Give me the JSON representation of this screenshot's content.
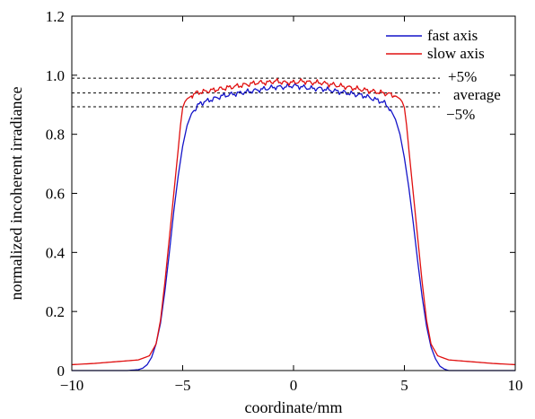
{
  "chart_data": {
    "type": "line",
    "title": "",
    "xlabel": "coordinate/mm",
    "ylabel": "normalized incoherent irradiance",
    "xlim": [
      -10,
      10
    ],
    "ylim": [
      0,
      1.2
    ],
    "xticks": [
      -10,
      -5,
      0,
      5,
      10
    ],
    "yticks": [
      0,
      0.2,
      0.4,
      0.6,
      0.8,
      1.0,
      1.2
    ],
    "xtick_labels": [
      "−10",
      "−5",
      "0",
      "5",
      "10"
    ],
    "ytick_labels": [
      "0",
      "0.2",
      "0.4",
      "0.6",
      "0.8",
      "1.0",
      "1.2"
    ],
    "grid": false,
    "legend_position": "top-right",
    "series": [
      {
        "name": "fast axis",
        "color": "#1414c8",
        "x": [
          -10,
          -9,
          -8,
          -7.5,
          -7,
          -6.8,
          -6.6,
          -6.4,
          -6.2,
          -6.0,
          -5.8,
          -5.6,
          -5.4,
          -5.2,
          -5.0,
          -4.8,
          -4.6,
          -4.4,
          -4.2,
          -4.0,
          -3.6,
          -3.2,
          -2.8,
          -2.4,
          -2.0,
          -1.6,
          -1.2,
          -0.8,
          -0.4,
          0,
          0.4,
          0.8,
          1.2,
          1.6,
          2.0,
          2.4,
          2.8,
          3.2,
          3.6,
          4.0,
          4.2,
          4.4,
          4.6,
          4.8,
          5.0,
          5.2,
          5.4,
          5.6,
          5.8,
          6.0,
          6.2,
          6.4,
          6.6,
          6.8,
          7.0,
          7.5,
          8,
          9,
          10
        ],
        "y": [
          0.0,
          0.0,
          0.0,
          0.0,
          0.003,
          0.008,
          0.02,
          0.045,
          0.09,
          0.16,
          0.27,
          0.4,
          0.54,
          0.66,
          0.76,
          0.83,
          0.87,
          0.89,
          0.905,
          0.91,
          0.92,
          0.93,
          0.935,
          0.94,
          0.945,
          0.95,
          0.955,
          0.96,
          0.96,
          0.965,
          0.96,
          0.955,
          0.955,
          0.95,
          0.945,
          0.94,
          0.935,
          0.93,
          0.92,
          0.91,
          0.9,
          0.88,
          0.85,
          0.8,
          0.72,
          0.62,
          0.5,
          0.37,
          0.25,
          0.15,
          0.08,
          0.04,
          0.015,
          0.005,
          0.0,
          0.0,
          0.0,
          0.0,
          0.0
        ]
      },
      {
        "name": "slow axis",
        "color": "#e01010",
        "x": [
          -10,
          -9.5,
          -9,
          -8.5,
          -8,
          -7.5,
          -7,
          -6.5,
          -6.2,
          -6.0,
          -5.8,
          -5.6,
          -5.4,
          -5.2,
          -5.1,
          -5.0,
          -4.9,
          -4.8,
          -4.6,
          -4.4,
          -4.0,
          -3.6,
          -3.2,
          -2.8,
          -2.4,
          -2.0,
          -1.6,
          -1.2,
          -0.8,
          -0.4,
          0,
          0.4,
          0.8,
          1.2,
          1.6,
          2.0,
          2.4,
          2.8,
          3.2,
          3.6,
          4.0,
          4.4,
          4.6,
          4.8,
          4.9,
          5.0,
          5.1,
          5.2,
          5.4,
          5.6,
          5.8,
          6.0,
          6.2,
          6.5,
          7.0,
          7.5,
          8,
          8.5,
          9,
          9.5,
          10
        ],
        "y": [
          0.02,
          0.022,
          0.024,
          0.027,
          0.03,
          0.033,
          0.036,
          0.05,
          0.09,
          0.17,
          0.3,
          0.45,
          0.6,
          0.75,
          0.83,
          0.89,
          0.91,
          0.92,
          0.93,
          0.94,
          0.945,
          0.95,
          0.955,
          0.96,
          0.965,
          0.97,
          0.975,
          0.975,
          0.98,
          0.975,
          0.975,
          0.98,
          0.975,
          0.975,
          0.97,
          0.965,
          0.96,
          0.955,
          0.95,
          0.945,
          0.94,
          0.935,
          0.93,
          0.92,
          0.91,
          0.89,
          0.83,
          0.75,
          0.6,
          0.45,
          0.3,
          0.17,
          0.09,
          0.05,
          0.036,
          0.033,
          0.03,
          0.027,
          0.024,
          0.022,
          0.02
        ]
      }
    ],
    "reference_lines": [
      {
        "label": "+5%",
        "y": 0.99
      },
      {
        "label": "average",
        "y": 0.94
      },
      {
        "label": "−5%",
        "y": 0.893
      }
    ]
  }
}
